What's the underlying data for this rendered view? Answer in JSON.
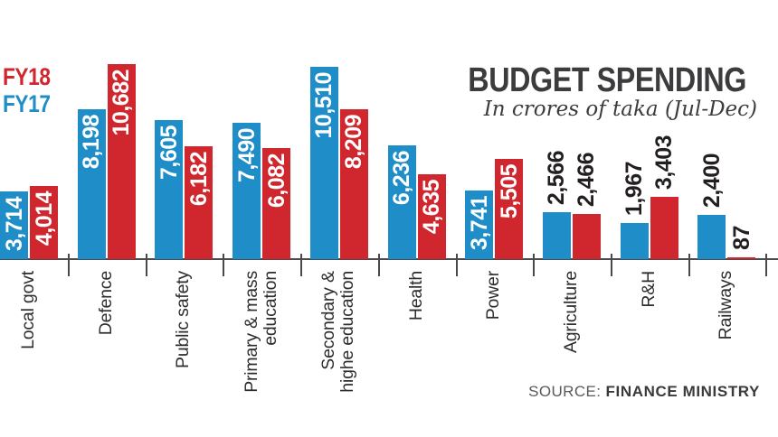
{
  "header": {
    "title": "BUDGET SPENDING",
    "subtitle": "In crores of taka (Jul-Dec)"
  },
  "legend": {
    "position": "top-left",
    "items": [
      {
        "label": "FY18",
        "color": "#d0262e"
      },
      {
        "label": "FY17",
        "color": "#1e8dc8"
      }
    ]
  },
  "source": {
    "prefix": "SOURCE:",
    "name": "FINANCE MINISTRY"
  },
  "chart_data": {
    "type": "bar",
    "title": "BUDGET SPENDING",
    "subtitle": "In crores of taka (Jul-Dec)",
    "unit": "crores of taka",
    "categories": [
      "Local govt",
      "Defence",
      "Public safety",
      "Primary & mass\neducation",
      "Secondary &\nhighe education",
      "Health",
      "Power",
      "Agriculture",
      "R&H",
      "Railways"
    ],
    "series": [
      {
        "name": "FY17",
        "color": "#1e8dc8",
        "values": [
          3714,
          8198,
          7605,
          7490,
          10510,
          6236,
          3741,
          2566,
          1967,
          2400
        ]
      },
      {
        "name": "FY18",
        "color": "#d0262e",
        "values": [
          4014,
          10682,
          6182,
          6082,
          8209,
          4635,
          5505,
          2466,
          3403,
          87
        ]
      }
    ],
    "axis": {
      "y_axis_visible": false,
      "x_baseline_visible": true,
      "ticks_between_categories": true,
      "axis_color": "#4a4a4c"
    },
    "value_label_style": "tall bars labeled inside in white, short bars labeled above in black, all rotated 90deg",
    "text_colors": {
      "values_inside": "#ffffff",
      "values_above": "#231f20",
      "category_labels": "#2d2c2e"
    }
  }
}
